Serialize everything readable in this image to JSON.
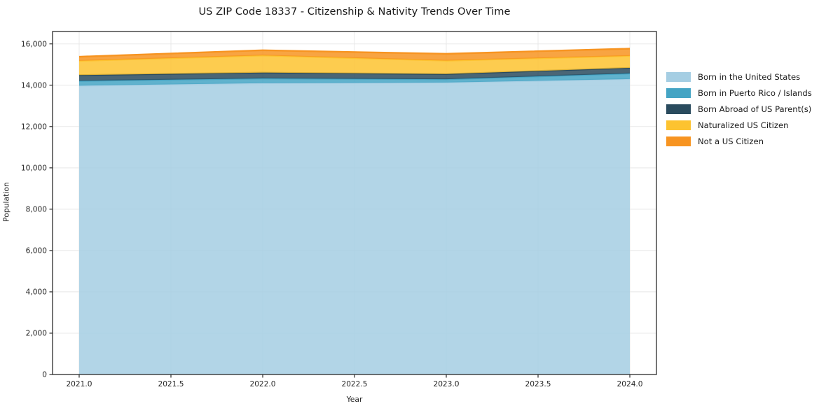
{
  "title": "US ZIP Code 18337 - Citizenship & Nativity Trends Over Time",
  "chart_data": {
    "type": "area",
    "stacked": true,
    "title": "US ZIP Code 18337 - Citizenship & Nativity Trends Over Time",
    "xlabel": "Year",
    "ylabel": "Population",
    "x": [
      2021,
      2022,
      2023,
      2024
    ],
    "x_tick_values": [
      2021.0,
      2021.5,
      2022.0,
      2022.5,
      2023.0,
      2023.5,
      2024.0
    ],
    "x_tick_labels": [
      "2021.0",
      "2021.5",
      "2022.0",
      "2022.5",
      "2023.0",
      "2023.5",
      "2024.0"
    ],
    "y_tick_values": [
      0,
      2000,
      4000,
      6000,
      8000,
      10000,
      12000,
      14000,
      16000
    ],
    "y_tick_labels": [
      "0",
      "2,000",
      "4,000",
      "6,000",
      "8,000",
      "10,000",
      "12,000",
      "14,000",
      "16,000"
    ],
    "xlim": [
      2020.855,
      2024.145
    ],
    "ylim": [
      0,
      16600
    ],
    "grid": true,
    "legend_position": "right-outside",
    "series": [
      {
        "name": "Born in the United States",
        "color": "#a5cee3",
        "values": [
          13980,
          14100,
          14130,
          14300
        ]
      },
      {
        "name": "Born in Puerto Rico / Islands",
        "color": "#44a4c4",
        "values": [
          230,
          230,
          160,
          270
        ]
      },
      {
        "name": "Born Abroad of US Parent(s)",
        "color": "#2a4b5e",
        "values": [
          280,
          280,
          250,
          270
        ]
      },
      {
        "name": "Naturalized US Citizen",
        "color": "#fdc330",
        "values": [
          690,
          830,
          650,
          580
        ]
      },
      {
        "name": "Not a US Citizen",
        "color": "#f79421",
        "values": [
          200,
          250,
          330,
          350
        ]
      }
    ],
    "stacked_totals": [
      15380,
      15690,
      15520,
      15770
    ],
    "colors": {
      "grid": "#e8e8e8",
      "spine": "#2b2b2b",
      "tick_text": "#262626",
      "background": "#ffffff"
    }
  }
}
